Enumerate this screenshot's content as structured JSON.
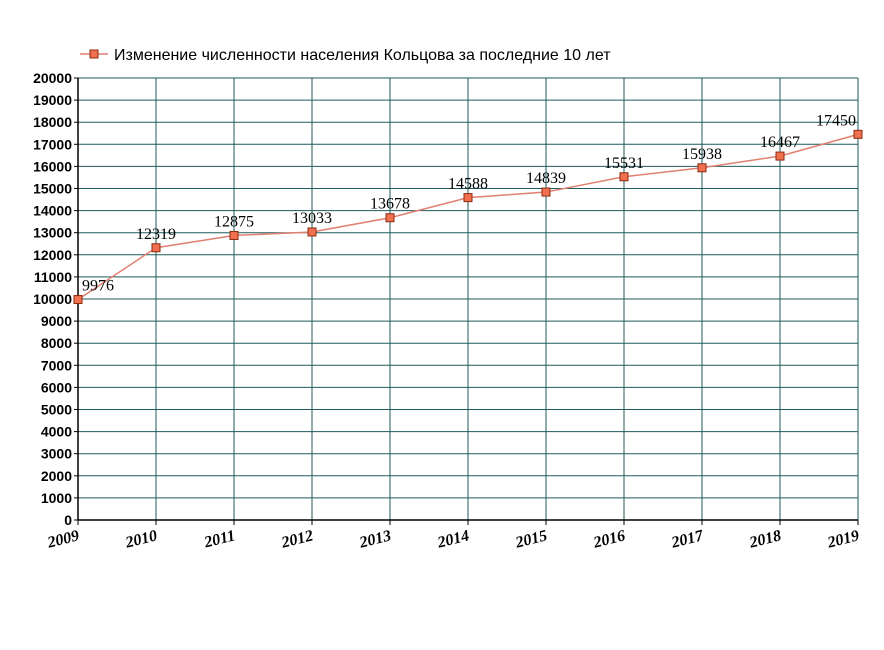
{
  "chart_data": {
    "type": "line",
    "categories": [
      "2009",
      "2010",
      "2011",
      "2012",
      "2013",
      "2014",
      "2015",
      "2016",
      "2017",
      "2018",
      "2019"
    ],
    "series": [
      {
        "name": "Изменение численности населения Кольцова за последние 10 лет",
        "values": [
          9976,
          12319,
          12875,
          13033,
          13678,
          14588,
          14839,
          15531,
          15938,
          16467,
          17450
        ],
        "labels": [
          "9976",
          "12319",
          "12875",
          "13033",
          "13678",
          "14588",
          "14839",
          "15531",
          "15938",
          "16467",
          "17450"
        ]
      }
    ],
    "y_ticks": [
      "0",
      "1000",
      "2000",
      "3000",
      "4000",
      "5000",
      "6000",
      "7000",
      "8000",
      "9000",
      "10000",
      "11000",
      "12000",
      "13000",
      "14000",
      "15000",
      "16000",
      "17000",
      "18000",
      "19000",
      "20000"
    ],
    "ylim": [
      0,
      20000
    ],
    "grid": true,
    "legend_position": "top",
    "line_color": "#e08070",
    "marker_color": "#f07050",
    "marker_border": "#8b2a10",
    "grid_color": "#1f5a5a"
  }
}
